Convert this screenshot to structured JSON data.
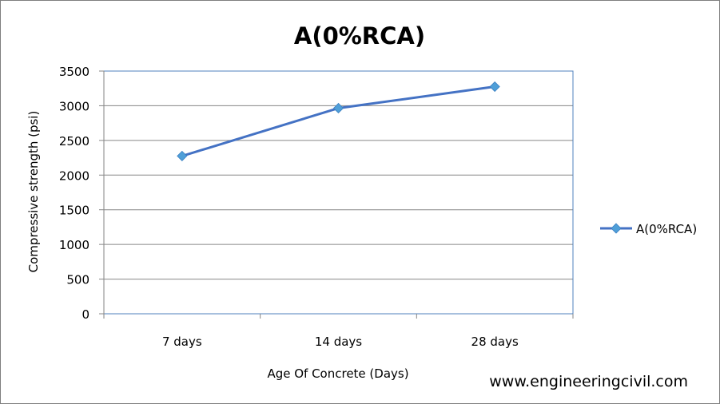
{
  "chart_data": {
    "type": "line",
    "title": "A(0%RCA)",
    "xlabel": "Age Of Concrete (Days)",
    "ylabel": "Compressive strength (psi)",
    "categories": [
      "7 days",
      "14 days",
      "28 days"
    ],
    "series": [
      {
        "name": "A(0%RCA)",
        "values": [
          2275,
          2965,
          3275
        ],
        "color": "#4472c4",
        "marker": "diamond",
        "marker_color": "#4f9fd8"
      }
    ],
    "ylim": [
      0,
      3500
    ],
    "yticks": [
      0,
      500,
      1000,
      1500,
      2000,
      2500,
      3000,
      3500
    ],
    "grid": true,
    "legend": "right"
  },
  "watermark": "www.engineeringcivil.com"
}
